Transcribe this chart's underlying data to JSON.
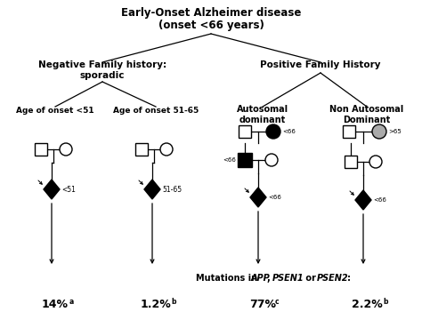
{
  "title_line1": "Early-Onset Alzheimer disease",
  "title_line2": "(onset <66 years)",
  "neg_family": "Negative Family history:\nsporadic",
  "pos_family": "Positive Family History",
  "age_lt51": "Age of onset <51",
  "age_51_65": "Age of onset 51-65",
  "autosomal": "Autosomal\ndominant",
  "non_autosomal": "Non Autosomal\nDominant",
  "mutations_text_normal": "Mutations in ",
  "mutations_text_italic": "APP",
  "mutations_text_2": ", ",
  "mutations_text_italic2": "PSEN1",
  "mutations_text_3": " or ",
  "mutations_text_italic3": "PSEN2",
  "mutations_text_4": ":",
  "pct1": "14%",
  "pct1_sup": "a",
  "pct2": "1.2%",
  "pct2_sup": "b",
  "pct3": "77%",
  "pct3_sup": "c",
  "pct4": "2.2%",
  "pct4_sup": "b",
  "label_lt51": "<51",
  "label_51_65": "51-65",
  "label_lt66_1": "<66",
  "label_lt66_2": "<66",
  "label_lt66_3": "<66",
  "label_gt65": ">65",
  "label_lt66_4": "<66",
  "bg_color": "#ffffff",
  "text_color": "#000000",
  "line_color": "#000000",
  "fig_w": 4.74,
  "fig_h": 3.51,
  "dpi": 100
}
